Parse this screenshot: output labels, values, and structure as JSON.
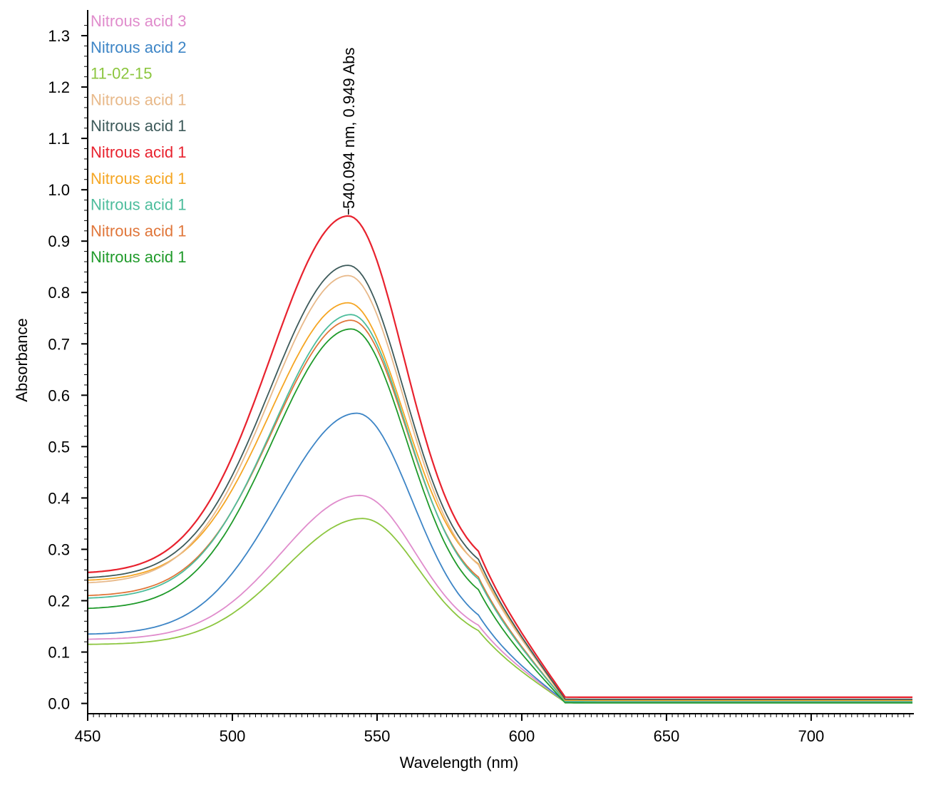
{
  "chart_data": {
    "type": "line",
    "title": "",
    "xlabel": "Wavelength (nm)",
    "ylabel": "Absorbance",
    "xlim": [
      450,
      735
    ],
    "ylim": [
      -0.02,
      1.35
    ],
    "x_ticks": [
      450,
      500,
      550,
      600,
      650,
      700
    ],
    "x_tick_labels": [
      "450",
      "500",
      "550",
      "600",
      "650",
      "700"
    ],
    "y_ticks": [
      0.0,
      0.1,
      0.2,
      0.3,
      0.4,
      0.5,
      0.6,
      0.7,
      0.8,
      0.9,
      1.0,
      1.1,
      1.2,
      1.3
    ],
    "y_tick_labels": [
      "0.0",
      "0.1",
      "0.2",
      "0.3",
      "0.4",
      "0.5",
      "0.6",
      "0.7",
      "0.8",
      "0.9",
      "1.0",
      "1.1",
      "1.2",
      "1.3"
    ],
    "grid": false,
    "legend_position": "top-left",
    "annotation": {
      "text": "540.094 nm, 0.949 Abs",
      "x": 540.094,
      "y": 0.949
    },
    "series": [
      {
        "name": "Nitrous acid 3",
        "color": "#e08ccc",
        "peak_x": 544,
        "peak": 0.405,
        "base_at_450": 0.125,
        "tail": 0.003
      },
      {
        "name": "Nitrous acid 2",
        "color": "#3d85c6",
        "peak_x": 543,
        "peak": 0.565,
        "base_at_450": 0.135,
        "tail": 0.003
      },
      {
        "name": "11-02-15",
        "color": "#8cc63f",
        "peak_x": 545,
        "peak": 0.36,
        "base_at_450": 0.115,
        "tail": 0.002
      },
      {
        "name": "Nitrous acid 1",
        "color": "#e8b98a",
        "peak_x": 540,
        "peak": 0.833,
        "base_at_450": 0.235,
        "tail": 0.008
      },
      {
        "name": "Nitrous acid 1",
        "color": "#3d5a5a",
        "peak_x": 540,
        "peak": 0.853,
        "base_at_450": 0.245,
        "tail": 0.008
      },
      {
        "name": "Nitrous acid 1",
        "color": "#e8222e",
        "peak_x": 540.094,
        "peak": 0.949,
        "base_at_450": 0.255,
        "tail": 0.012
      },
      {
        "name": "Nitrous acid 1",
        "color": "#f5a623",
        "peak_x": 540,
        "peak": 0.78,
        "base_at_450": 0.24,
        "tail": 0.006
      },
      {
        "name": "Nitrous acid 1",
        "color": "#4dbd9c",
        "peak_x": 541,
        "peak": 0.757,
        "base_at_450": 0.205,
        "tail": 0.004
      },
      {
        "name": "Nitrous acid 1",
        "color": "#e0763a",
        "peak_x": 541,
        "peak": 0.746,
        "base_at_450": 0.21,
        "tail": 0.004
      },
      {
        "name": "Nitrous acid 1",
        "color": "#1f9a2a",
        "peak_x": 541,
        "peak": 0.729,
        "base_at_450": 0.185,
        "tail": 0.001
      }
    ]
  }
}
